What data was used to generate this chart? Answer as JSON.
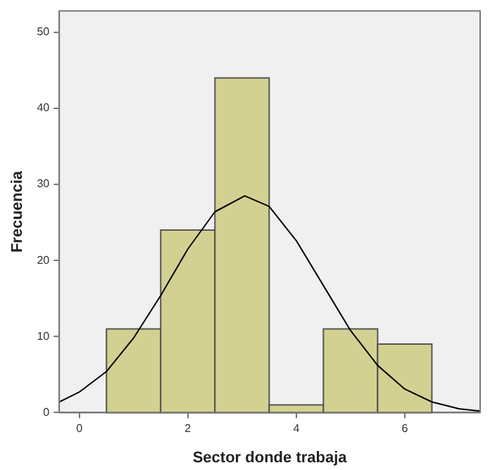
{
  "chart_data": {
    "type": "histogram",
    "xlabel": "Sector donde trabaja",
    "ylabel": "Frecuencia",
    "bins": [
      0.5,
      1.5,
      2.5,
      3.5,
      4.5,
      5.5,
      6.5
    ],
    "values": [
      11,
      24,
      44,
      1,
      11,
      9
    ],
    "color": "#d3d191",
    "series": [
      {
        "type": "line",
        "color": "#000000",
        "x": [
          -0.37,
          0,
          0.5,
          1,
          1.5,
          2,
          2.5,
          3.05,
          3.5,
          4,
          4.5,
          5,
          5.5,
          6,
          6.5,
          7,
          7.39
        ],
        "values": [
          1.4,
          2.7,
          5.4,
          9.8,
          15.4,
          21.5,
          26.4,
          28.5,
          27.1,
          22.6,
          16.7,
          10.8,
          6.2,
          3.1,
          1.4,
          0.5,
          0.2
        ]
      }
    ],
    "xlim": [
      -0.37,
      7.39
    ],
    "xticks": [
      0,
      2,
      4,
      6
    ],
    "ylim": [
      0,
      52.8
    ],
    "yticks": [
      0,
      10,
      20,
      30,
      40,
      50
    ],
    "grid": false,
    "legend": false,
    "marker": "none",
    "line_style": "solid"
  }
}
